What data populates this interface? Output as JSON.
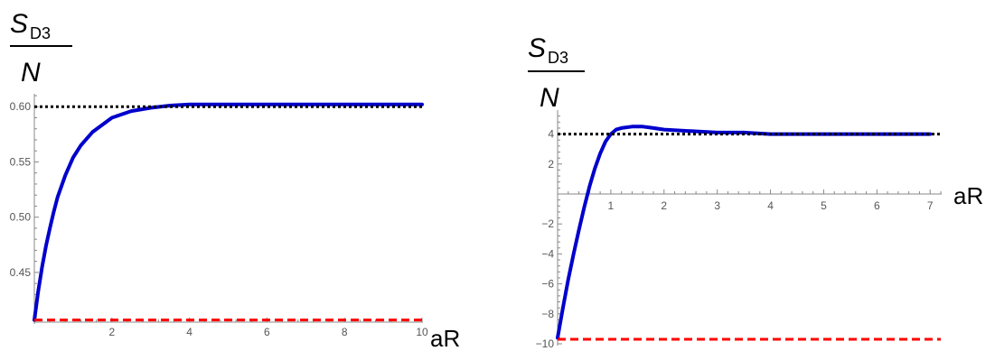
{
  "chart_data": [
    {
      "type": "line",
      "ylabel": "S_D3 / N",
      "ylabel_main": "S",
      "ylabel_sub": "D3",
      "ylabel_den": "N",
      "xlabel": "aR",
      "xlim": [
        0,
        10
      ],
      "ylim": [
        0.405,
        0.61
      ],
      "xticks": [
        "2",
        "4",
        "6",
        "8",
        "10"
      ],
      "xtick_values": [
        2,
        4,
        6,
        8,
        10
      ],
      "yticks": [
        "0.45",
        "0.50",
        "0.55",
        "0.60"
      ],
      "ytick_values": [
        0.45,
        0.5,
        0.55,
        0.6
      ],
      "grid": false,
      "series": [
        {
          "style": "solid",
          "color": "#0000cc",
          "x": [
            0,
            0.1,
            0.2,
            0.3,
            0.4,
            0.5,
            0.6,
            0.8,
            1.0,
            1.2,
            1.5,
            2.0,
            2.5,
            3.0,
            3.5,
            4.0,
            5.0,
            6.0,
            7.0,
            8.0,
            9.0,
            10.0
          ],
          "y": [
            0.407,
            0.433,
            0.455,
            0.474,
            0.49,
            0.505,
            0.518,
            0.538,
            0.554,
            0.565,
            0.577,
            0.59,
            0.596,
            0.599,
            0.601,
            0.602,
            0.602,
            0.602,
            0.602,
            0.602,
            0.602,
            0.602
          ]
        },
        {
          "style": "dotted",
          "color": "#000000",
          "x": [
            0,
            10
          ],
          "y": [
            0.6,
            0.6
          ]
        },
        {
          "style": "dashed",
          "color": "#ff0000",
          "x": [
            0,
            10
          ],
          "y": [
            0.407,
            0.407
          ]
        }
      ]
    },
    {
      "type": "line",
      "ylabel": "S_D3 / N",
      "ylabel_main": "S",
      "ylabel_sub": "D3",
      "ylabel_den": "N",
      "xlabel": "aR",
      "xlim": [
        0,
        7.2
      ],
      "ylim": [
        -10,
        5.3
      ],
      "xticks": [
        "1",
        "2",
        "3",
        "4",
        "5",
        "6",
        "7"
      ],
      "xtick_values": [
        1,
        2,
        3,
        4,
        5,
        6,
        7
      ],
      "yticks": [
        "−10",
        "−8",
        "−6",
        "−4",
        "−2",
        "2",
        "4"
      ],
      "ytick_values": [
        -10,
        -8,
        -6,
        -4,
        -2,
        2,
        4
      ],
      "grid": false,
      "series": [
        {
          "style": "solid",
          "color": "#0000cc",
          "x": [
            0,
            0.1,
            0.2,
            0.3,
            0.4,
            0.5,
            0.6,
            0.7,
            0.8,
            0.9,
            1.0,
            1.1,
            1.2,
            1.4,
            1.6,
            1.8,
            2.0,
            2.5,
            3.0,
            3.5,
            4.0,
            5.0,
            6.0,
            7.0
          ],
          "y": [
            -9.6,
            -7.6,
            -5.7,
            -4.0,
            -2.4,
            -0.9,
            0.5,
            1.7,
            2.7,
            3.5,
            4.0,
            4.3,
            4.4,
            4.5,
            4.5,
            4.4,
            4.3,
            4.2,
            4.1,
            4.1,
            4.0,
            4.0,
            4.0,
            4.0
          ]
        },
        {
          "style": "dotted",
          "color": "#000000",
          "x": [
            0,
            7.2
          ],
          "y": [
            4.0,
            4.0
          ]
        },
        {
          "style": "dashed",
          "color": "#ff0000",
          "x": [
            0,
            7.2
          ],
          "y": [
            -9.7,
            -9.7
          ]
        }
      ]
    }
  ]
}
